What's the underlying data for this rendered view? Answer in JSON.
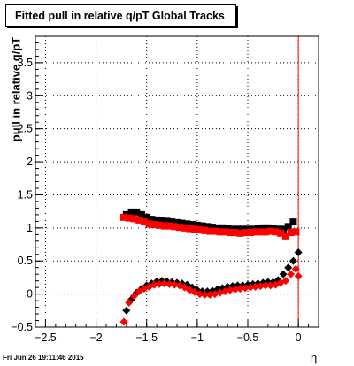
{
  "chart_data": {
    "type": "scatter",
    "title": "Fitted pull in relative q/pT  Global Tracks",
    "xlabel": "η",
    "ylabel": "pull in relative q/pT",
    "xlim": [
      -2.6,
      0.2
    ],
    "ylim": [
      -0.5,
      3.9
    ],
    "grid": true,
    "xticks": [
      -2.5,
      -2,
      -1.5,
      -1,
      -0.5,
      0
    ],
    "xtick_labels": [
      "−2.5",
      "−2",
      "−1.5",
      "−1",
      "−0.5",
      "0"
    ],
    "yticks": [
      -0.5,
      0,
      0.5,
      1,
      1.5,
      2,
      2.5,
      3,
      3.5
    ],
    "ytick_labels": [
      "−0.5",
      "0",
      "0.5",
      "1",
      "1.5",
      "2",
      "2.5",
      "3",
      "3.5"
    ],
    "vertical_line_x": 0,
    "series": [
      {
        "color": "#000000",
        "marker": "square",
        "x": [
          -1.7,
          -1.65,
          -1.6,
          -1.55,
          -1.5,
          -1.45,
          -1.4,
          -1.35,
          -1.3,
          -1.25,
          -1.2,
          -1.15,
          -1.1,
          -1.05,
          -1.0,
          -0.95,
          -0.9,
          -0.85,
          -0.8,
          -0.75,
          -0.7,
          -0.65,
          -0.6,
          -0.55,
          -0.5,
          -0.45,
          -0.4,
          -0.35,
          -0.3,
          -0.25,
          -0.2,
          -0.15,
          -0.1,
          -0.05
        ],
        "y": [
          1.2,
          1.24,
          1.24,
          1.2,
          1.16,
          1.13,
          1.12,
          1.11,
          1.1,
          1.09,
          1.08,
          1.07,
          1.06,
          1.05,
          1.04,
          1.03,
          1.02,
          1.01,
          1.0,
          1.0,
          0.99,
          0.98,
          0.98,
          0.98,
          0.98,
          0.98,
          0.99,
          1.0,
          1.0,
          0.99,
          0.98,
          0.98,
          1.02,
          1.09
        ]
      },
      {
        "color": "#ff0000",
        "marker": "square",
        "x": [
          -1.725,
          -1.675,
          -1.625,
          -1.575,
          -1.525,
          -1.475,
          -1.425,
          -1.375,
          -1.325,
          -1.275,
          -1.225,
          -1.175,
          -1.125,
          -1.075,
          -1.025,
          -0.975,
          -0.925,
          -0.875,
          -0.825,
          -0.775,
          -0.725,
          -0.675,
          -0.625,
          -0.575,
          -0.525,
          -0.475,
          -0.425,
          -0.375,
          -0.325,
          -0.275,
          -0.225,
          -0.175,
          -0.125,
          -0.075,
          -0.025
        ],
        "y": [
          1.16,
          1.15,
          1.14,
          1.12,
          1.09,
          1.06,
          1.05,
          1.04,
          1.03,
          1.03,
          1.02,
          1.01,
          1.0,
          0.99,
          0.98,
          0.97,
          0.96,
          0.95,
          0.95,
          0.94,
          0.94,
          0.93,
          0.93,
          0.92,
          0.93,
          0.93,
          0.94,
          0.94,
          0.94,
          0.95,
          0.94,
          0.92,
          0.88,
          0.93,
          0.94
        ]
      },
      {
        "color": "#000000",
        "marker": "diamond",
        "x": [
          -1.7,
          -1.65,
          -1.6,
          -1.55,
          -1.5,
          -1.45,
          -1.4,
          -1.35,
          -1.3,
          -1.25,
          -1.2,
          -1.15,
          -1.1,
          -1.05,
          -1.0,
          -0.95,
          -0.9,
          -0.85,
          -0.8,
          -0.75,
          -0.7,
          -0.65,
          -0.6,
          -0.55,
          -0.5,
          -0.45,
          -0.4,
          -0.35,
          -0.3,
          -0.25,
          -0.2,
          -0.15,
          -0.1,
          -0.05,
          0.0
        ],
        "y": [
          -0.25,
          -0.08,
          0.02,
          0.08,
          0.13,
          0.16,
          0.19,
          0.2,
          0.19,
          0.18,
          0.17,
          0.16,
          0.14,
          0.1,
          0.06,
          0.04,
          0.04,
          0.05,
          0.07,
          0.09,
          0.11,
          0.12,
          0.13,
          0.13,
          0.14,
          0.15,
          0.16,
          0.17,
          0.18,
          0.18,
          0.21,
          0.3,
          0.4,
          0.5,
          0.63
        ]
      },
      {
        "color": "#ff0000",
        "marker": "diamond",
        "x": [
          -1.725,
          -1.675,
          -1.625,
          -1.575,
          -1.525,
          -1.475,
          -1.425,
          -1.375,
          -1.325,
          -1.275,
          -1.225,
          -1.175,
          -1.125,
          -1.075,
          -1.025,
          -0.975,
          -0.925,
          -0.875,
          -0.825,
          -0.775,
          -0.725,
          -0.675,
          -0.625,
          -0.575,
          -0.525,
          -0.475,
          -0.425,
          -0.375,
          -0.325,
          -0.275,
          -0.225,
          -0.175,
          -0.125,
          -0.075,
          -0.025,
          0.0
        ],
        "y": [
          -0.42,
          -0.13,
          -0.03,
          0.04,
          0.08,
          0.11,
          0.14,
          0.15,
          0.16,
          0.15,
          0.14,
          0.13,
          0.1,
          0.06,
          0.03,
          0.0,
          -0.01,
          -0.01,
          0.0,
          0.02,
          0.04,
          0.06,
          0.07,
          0.08,
          0.09,
          0.1,
          0.11,
          0.12,
          0.13,
          0.13,
          0.14,
          0.17,
          0.2,
          0.3,
          0.38,
          0.27
        ]
      }
    ]
  },
  "footer_text": "Fri Jun 26 19:11:46 2015"
}
